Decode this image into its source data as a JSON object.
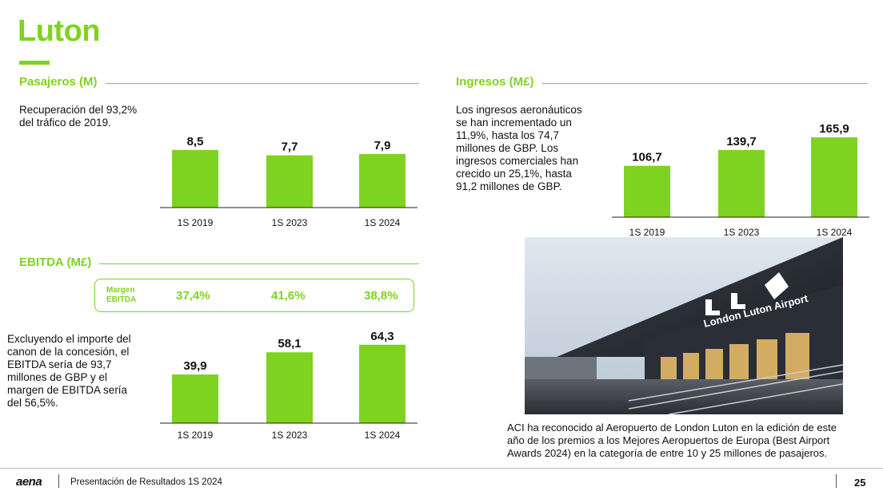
{
  "page": {
    "title": "Luton",
    "footer_logo": "aena",
    "footer_text": "Presentación de Resultados 1S 2024",
    "page_number": "25",
    "accent_color": "#7ed321"
  },
  "passengers": {
    "heading": "Pasajeros (M)",
    "description_lines": [
      "Recuperación del 93,2%",
      "del tráfico de 2019."
    ]
  },
  "revenue": {
    "heading": "Ingresos (M£)",
    "description_lines": [
      "Los ingresos aeronáuticos",
      "se han incrementado un",
      "11,9%, hasta los 74,7",
      "millones de GBP. Los",
      "ingresos comerciales han",
      "crecido un 25,1%, hasta",
      "91,2 millones de GBP."
    ]
  },
  "ebitda": {
    "heading": "EBITDA (M£)",
    "margin_label_lines": [
      "Margen",
      "EBITDA"
    ],
    "margins": [
      "37,4%",
      "41,6%",
      "38,8%"
    ],
    "description_lines": [
      "Excluyendo el importe del",
      "canon de la concesión, el",
      "EBITDA sería de 93,7",
      "millones de GBP y el",
      "margen de EBITDA sería",
      "del 56,5%."
    ]
  },
  "airport_photo": {
    "sign_text": "London Luton Airport",
    "caption_lines": [
      "ACI ha reconocido al Aeropuerto de London Luton en la edición de este",
      "año de los premios a los Mejores Aeropuertos de Europa (Best Airport",
      "Awards 2024) en la categoría de entre 10 y 25 millones de pasajeros."
    ]
  },
  "chart_data": [
    {
      "id": "passengers",
      "type": "bar",
      "title": "Pasajeros (M)",
      "categories": [
        "1S 2019",
        "1S 2023",
        "1S 2024"
      ],
      "values": [
        8.5,
        7.7,
        7.9
      ],
      "labels": [
        "8,5",
        "7,7",
        "7,9"
      ],
      "ylim": [
        0,
        10
      ],
      "color": "#7ed321"
    },
    {
      "id": "revenue",
      "type": "bar",
      "title": "Ingresos (M£)",
      "categories": [
        "1S 2019",
        "1S 2023",
        "1S 2024"
      ],
      "values": [
        106.7,
        139.7,
        165.9
      ],
      "labels": [
        "106,7",
        "139,7",
        "165,9"
      ],
      "ylim": [
        0,
        165.9
      ],
      "color": "#7ed321"
    },
    {
      "id": "ebitda",
      "type": "bar",
      "title": "EBITDA (M£)",
      "categories": [
        "1S 2019",
        "1S 2023",
        "1S 2024"
      ],
      "values": [
        39.9,
        58.1,
        64.3
      ],
      "labels": [
        "39,9",
        "58,1",
        "64,3"
      ],
      "ylim": [
        0,
        72
      ],
      "color": "#7ed321"
    }
  ]
}
